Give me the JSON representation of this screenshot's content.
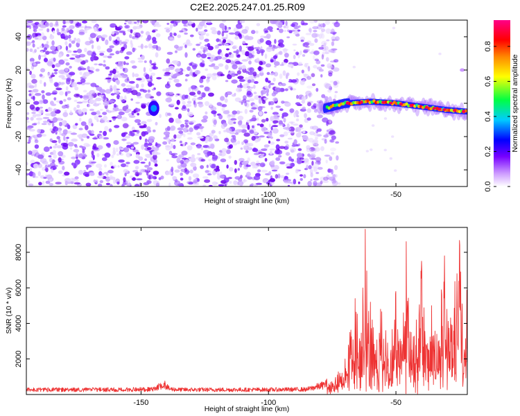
{
  "figure": {
    "title": "C2E2.2025.247.01.25.R09"
  },
  "chart_data": [
    {
      "type": "heatmap",
      "name": "spectrogram",
      "xlabel": "Height of straight line (km)",
      "ylabel": "Frequency (Hz)",
      "xlim": [
        -195,
        -22
      ],
      "ylim": [
        -50,
        50
      ],
      "x_ticks": [
        -150,
        -100,
        -50
      ],
      "x_tick_labels": [
        "-150",
        "-100",
        "-50"
      ],
      "y_ticks": [
        -40,
        -20,
        0,
        20,
        40
      ],
      "y_tick_labels": [
        "-40",
        "-20",
        "0",
        "20",
        "40"
      ],
      "colorbar": {
        "label": "Normalized spectral amplitude",
        "range": [
          0,
          0.95
        ],
        "ticks": [
          0,
          0.2,
          0.4,
          0.6,
          0.8
        ],
        "tick_labels": [
          "0.0",
          "0.2",
          "0.4",
          "0.6",
          "0.8"
        ],
        "colors": [
          "#ffffff",
          "#cc99ff",
          "#7700ff",
          "#0000ff",
          "#00ccff",
          "#00ff44",
          "#ffff00",
          "#ff8800",
          "#ff0000",
          "#ff0088"
        ]
      },
      "noise_cutoff_x": -75,
      "gap_x": [
        -143,
        -140
      ],
      "features": [
        {
          "name": "blip",
          "x": -145,
          "y": -3,
          "amplitude": 0.35
        },
        {
          "name": "signal-track",
          "x": [
            -78,
            -70,
            -60,
            -50,
            -40,
            -30,
            -22
          ],
          "y": [
            -3,
            0,
            1,
            0,
            -2,
            -4,
            -5
          ],
          "peak_amplitude": 0.9
        }
      ]
    },
    {
      "type": "line",
      "name": "snr",
      "xlabel": "Height of straight line (km)",
      "ylabel": "SNR (10 * v/v)",
      "xlim": [
        -195,
        -22
      ],
      "ylim": [
        0,
        9400
      ],
      "x_ticks": [
        -150,
        -100,
        -50
      ],
      "x_tick_labels": [
        "-150",
        "-100",
        "-50"
      ],
      "y_ticks": [
        2000,
        4000,
        6000,
        8000
      ],
      "y_tick_labels": [
        "2000",
        "4000",
        "6000",
        "8000"
      ],
      "series": [
        {
          "name": "SNR",
          "color": "#ee3333",
          "x": [
            -195,
            -180,
            -160,
            -145,
            -141,
            -139,
            -135,
            -120,
            -100,
            -85,
            -78,
            -72,
            -70,
            -68,
            -66,
            -64,
            -63,
            -62,
            -61,
            -60,
            -58,
            -56,
            -54,
            -52,
            -50,
            -48,
            -47,
            -46,
            -44,
            -42,
            -40,
            -38,
            -36,
            -34,
            -32,
            -31,
            -30,
            -28,
            -26,
            -25,
            -24,
            -23,
            -22
          ],
          "values": [
            300,
            300,
            300,
            320,
            650,
            350,
            300,
            300,
            300,
            320,
            600,
            1200,
            2000,
            3500,
            5400,
            3000,
            6000,
            9300,
            4000,
            5200,
            2500,
            4800,
            3600,
            2500,
            5800,
            3000,
            4600,
            8600,
            3500,
            4200,
            7500,
            2800,
            5000,
            3400,
            5600,
            7800,
            4800,
            3900,
            6800,
            8400,
            5100,
            2300,
            8000
          ]
        }
      ]
    }
  ]
}
